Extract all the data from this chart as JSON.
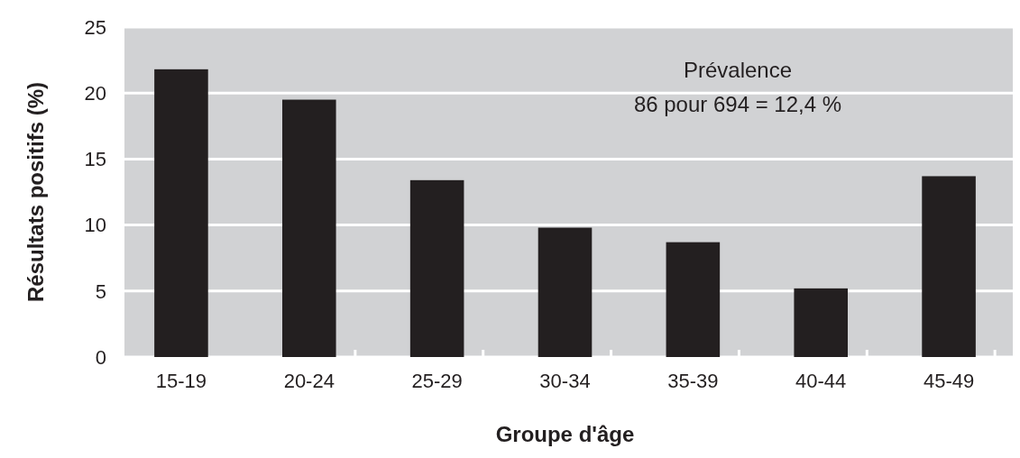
{
  "chart_data": {
    "type": "bar",
    "xlabel": "Groupe d'âge",
    "ylabel": "Résultats positifs (%)",
    "categories": [
      "15-19",
      "20-24",
      "25-29",
      "30-34",
      "35-39",
      "40-44",
      "45-49"
    ],
    "values": [
      21.8,
      19.5,
      13.4,
      9.8,
      8.7,
      5.2,
      13.7
    ],
    "color": "#231f20",
    "ylim": [
      0,
      25
    ],
    "yticks": [
      0,
      5,
      10,
      15,
      20,
      25
    ],
    "grid": "y",
    "annotations": [
      "Prévalence",
      "86 pour 694 = 12,4 %"
    ]
  }
}
